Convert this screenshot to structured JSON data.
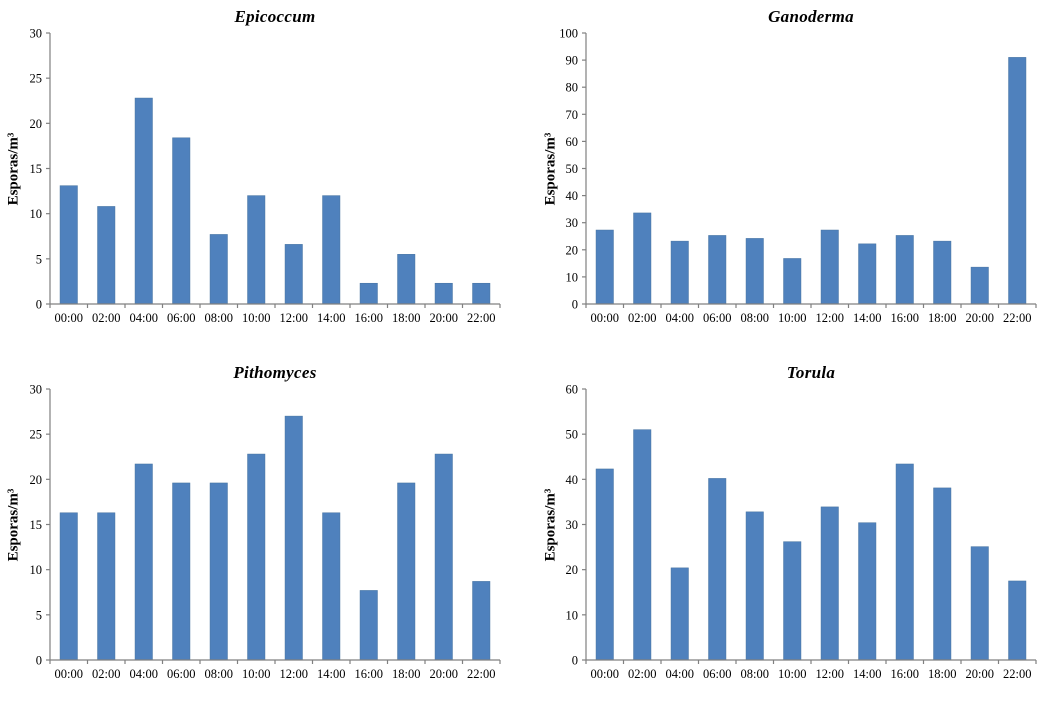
{
  "page": {
    "background": "#ffffff"
  },
  "colors": {
    "bar": "#4F81BD",
    "bar_border": "#44719F",
    "axis": "#808080",
    "text": "#000000"
  },
  "chart_data": [
    {
      "type": "bar",
      "title": "Epicoccum",
      "xlabel": "",
      "ylabel": "Esporas/m³",
      "categories": [
        "00:00",
        "02:00",
        "04:00",
        "06:00",
        "08:00",
        "10:00",
        "12:00",
        "14:00",
        "16:00",
        "18:00",
        "20:00",
        "22:00"
      ],
      "values": [
        13.1,
        10.8,
        22.8,
        18.4,
        7.7,
        12.0,
        6.6,
        12.0,
        2.3,
        5.5,
        2.3,
        2.3
      ],
      "ylim": [
        0,
        30
      ],
      "ytick_step": 5,
      "grid": false,
      "legend": "none"
    },
    {
      "type": "bar",
      "title": "Ganoderma",
      "xlabel": "",
      "ylabel": "Esporas/m³",
      "categories": [
        "00:00",
        "02:00",
        "04:00",
        "06:00",
        "08:00",
        "10:00",
        "12:00",
        "14:00",
        "16:00",
        "18:00",
        "20:00",
        "22:00"
      ],
      "values": [
        27.3,
        33.6,
        23.2,
        25.3,
        24.2,
        16.8,
        27.3,
        22.2,
        25.3,
        23.2,
        13.6,
        91.0
      ],
      "ylim": [
        0,
        100
      ],
      "ytick_step": 10,
      "grid": false,
      "legend": "none"
    },
    {
      "type": "bar",
      "title": "Pithomyces",
      "xlabel": "",
      "ylabel": "Esporas/m³",
      "categories": [
        "00:00",
        "02:00",
        "04:00",
        "06:00",
        "08:00",
        "10:00",
        "12:00",
        "14:00",
        "16:00",
        "18:00",
        "20:00",
        "22:00"
      ],
      "values": [
        16.3,
        16.3,
        21.7,
        19.6,
        19.6,
        22.8,
        27.0,
        16.3,
        7.7,
        19.6,
        22.8,
        8.7
      ],
      "ylim": [
        0,
        30
      ],
      "ytick_step": 5,
      "grid": false,
      "legend": "none"
    },
    {
      "type": "bar",
      "title": "Torula",
      "xlabel": "",
      "ylabel": "Esporas/m³",
      "categories": [
        "00:00",
        "02:00",
        "04:00",
        "06:00",
        "08:00",
        "10:00",
        "12:00",
        "14:00",
        "16:00",
        "18:00",
        "20:00",
        "22:00"
      ],
      "values": [
        42.3,
        51.0,
        20.4,
        40.2,
        32.8,
        26.2,
        33.9,
        30.4,
        43.4,
        38.1,
        25.1,
        17.5
      ],
      "ylim": [
        0,
        60
      ],
      "ytick_step": 10,
      "grid": false,
      "legend": "none"
    }
  ]
}
